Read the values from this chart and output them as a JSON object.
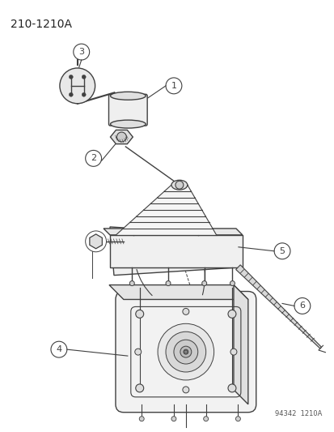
{
  "title": "210-1210A",
  "footnote": "94342  1210A",
  "bg_color": "#ffffff",
  "line_color": "#404040",
  "fig_width": 4.14,
  "fig_height": 5.33,
  "dpi": 100
}
